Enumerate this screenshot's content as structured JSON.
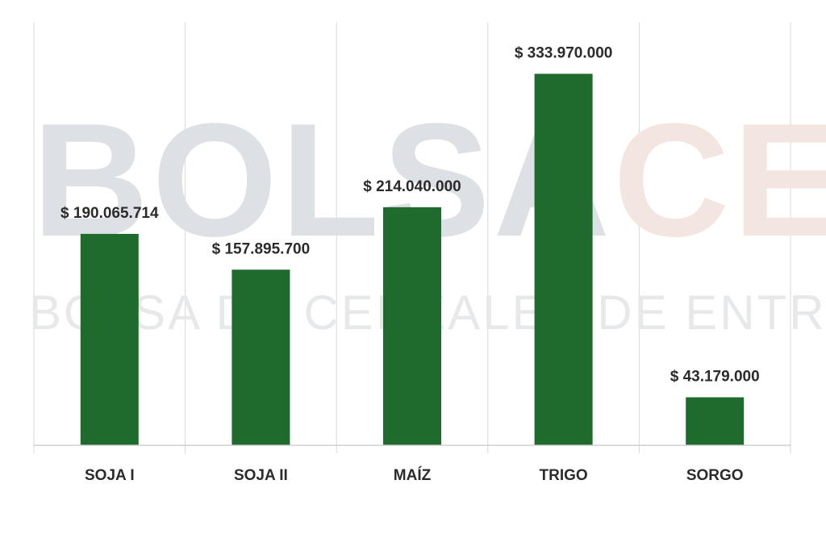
{
  "watermark": {
    "main_part1": "BOLSA",
    "main_part2": "CER",
    "subtitle": "BOLSA DE CEREALES DE ENTRE RÍOS",
    "colors": {
      "part1": "#dde1e5",
      "part2": "#f3e5df",
      "subtitle": "#e6e8ea"
    }
  },
  "chart_data": {
    "type": "bar",
    "categories": [
      "SOJA I",
      "SOJA II",
      "MAÍZ",
      "TRIGO",
      "SORGO"
    ],
    "values": [
      190065714,
      157895700,
      214040000,
      333970000,
      43179000
    ],
    "value_labels": [
      "$ 190.065.714",
      "$ 157.895.700",
      "$ 214.040.000",
      "$ 333.970.000",
      "$ 43.179.000"
    ],
    "title": "",
    "xlabel": "",
    "ylabel": "",
    "ylim": [
      0,
      380000000
    ],
    "grid": "vertical",
    "legend": "none",
    "bar_color": "#1f6b2d",
    "grid_color": "#d9d9d9",
    "axis_color": "#cfcfcf"
  }
}
